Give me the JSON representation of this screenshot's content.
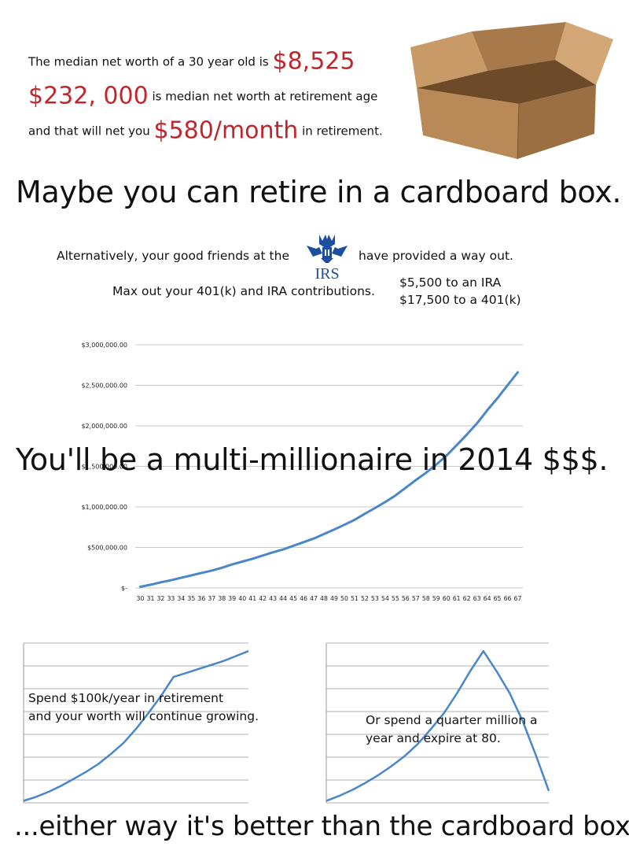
{
  "intro": {
    "line1_text": "The median net worth of a 30 year old is",
    "line1_amount": "$8,525",
    "line2_amount": "$232, 000",
    "line2_text": "is median net worth at retirement age",
    "line3_text_a": "and that will net you",
    "line3_amount": "$580/month",
    "line3_text_b": "in retirement."
  },
  "headline1": "Maybe you can retire in a cardboard box.",
  "irs": {
    "line_before": "Alternatively, your good friends at the",
    "logo_text": "IRS",
    "line_after": "have provided a way out.",
    "max_out": "Max out your 401(k) and IRA contributions.",
    "ira": "$5,500 to an IRA",
    "k401": "$17,500 to a 401(k)"
  },
  "headline2": "You'll be a multi-millionaire in 2014 $$$.",
  "mini_left_caption_1": "Spend $100k/year in retirement",
  "mini_left_caption_2": "and your worth will continue growing.",
  "mini_right_caption_1": "Or spend a quarter million a",
  "mini_right_caption_2": "year and expire at 80.",
  "footer": "...either way it's better than the cardboard box.",
  "colors": {
    "red": "#c0272d",
    "line": "#4a86c8",
    "irs_blue": "#1c4fa0",
    "box": "#b98a58"
  },
  "chart_data": [
    {
      "type": "line",
      "title": "",
      "xlabel": "",
      "ylabel": "",
      "y_tick_labels": [
        "$-",
        "$500,000.00",
        "$1,000,000.00",
        "$1,500,000.00",
        "$2,000,000.00",
        "$2,500,000.00",
        "$3,000,000.00"
      ],
      "ylim": [
        0,
        3000000
      ],
      "x": [
        30,
        31,
        32,
        33,
        34,
        35,
        36,
        37,
        38,
        39,
        40,
        41,
        42,
        43,
        44,
        45,
        46,
        47,
        48,
        49,
        50,
        51,
        52,
        53,
        54,
        55,
        56,
        57,
        58,
        59,
        60,
        61,
        62,
        63,
        64,
        65,
        66,
        67
      ],
      "series": [
        {
          "values": [
            15000,
            40000,
            70000,
            95000,
            125000,
            155000,
            185000,
            215000,
            250000,
            290000,
            325000,
            360000,
            400000,
            440000,
            475000,
            520000,
            565000,
            610000,
            665000,
            720000,
            780000,
            840000,
            915000,
            985000,
            1060000,
            1140000,
            1235000,
            1330000,
            1420000,
            1520000,
            1630000,
            1760000,
            1890000,
            2030000,
            2190000,
            2340000,
            2500000,
            2660000
          ]
        }
      ]
    },
    {
      "type": "line",
      "title": "",
      "ylim": [
        0,
        8
      ],
      "series": [
        {
          "values": [
            0.1,
            0.3,
            0.55,
            0.85,
            1.2,
            1.55,
            1.95,
            2.45,
            3.0,
            3.7,
            4.5,
            5.35,
            6.3,
            6.5,
            6.7,
            6.9,
            7.1,
            7.35,
            7.6
          ]
        }
      ]
    },
    {
      "type": "line",
      "title": "",
      "ylim": [
        0,
        8
      ],
      "series": [
        {
          "values": [
            0.1,
            0.35,
            0.65,
            1.0,
            1.4,
            1.85,
            2.35,
            2.95,
            3.7,
            4.5,
            5.5,
            6.6,
            7.6,
            6.6,
            5.5,
            4.1,
            2.4,
            0.6
          ]
        }
      ]
    }
  ]
}
